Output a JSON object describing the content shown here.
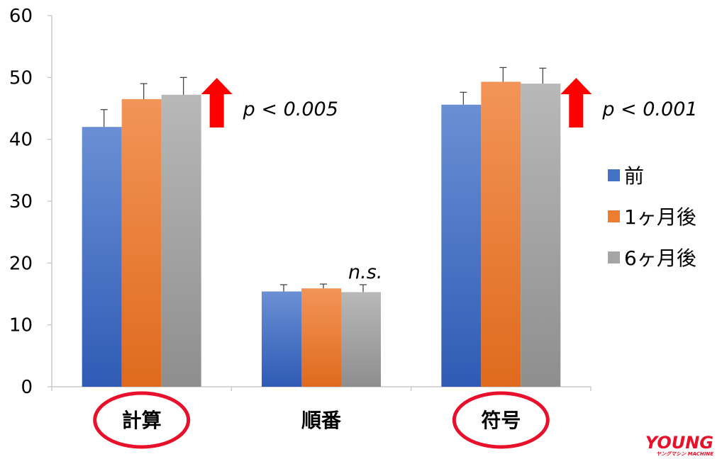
{
  "chart_data": {
    "type": "bar",
    "categories": [
      "計算",
      "順番",
      "符号"
    ],
    "series": [
      {
        "name": "前",
        "values": [
          42.0,
          15.4,
          45.6
        ],
        "errors": [
          2.8,
          1.1,
          2.0
        ]
      },
      {
        "name": "1ヶ月後",
        "values": [
          46.5,
          15.9,
          49.3
        ],
        "errors": [
          2.5,
          0.7,
          2.3
        ]
      },
      {
        "name": "6ヶ月後",
        "values": [
          47.2,
          15.3,
          49.0
        ],
        "errors": [
          2.8,
          1.2,
          2.5
        ]
      }
    ],
    "ylim": [
      0,
      60
    ],
    "yticks": [
      "0",
      "10",
      "20",
      "30",
      "40",
      "50",
      "60"
    ],
    "xlabel": "",
    "ylabel": "",
    "legend_position": "right",
    "annotations": [
      {
        "category": "計算",
        "text": "p < 0.005",
        "arrow": "up"
      },
      {
        "category": "順番",
        "text": "n.s.",
        "arrow": "none"
      },
      {
        "category": "符号",
        "text": "p < 0.001",
        "arrow": "up"
      }
    ],
    "circled_categories": [
      "計算",
      "符号"
    ],
    "colors": {
      "series": [
        "#4472c4",
        "#ed7d31",
        "#a5a5a5"
      ],
      "arrow": "#ff0000",
      "circle": "#e8102a"
    }
  },
  "watermark": {
    "line1": "YOUNG",
    "line2": "ヤングマシン MACHINE"
  }
}
